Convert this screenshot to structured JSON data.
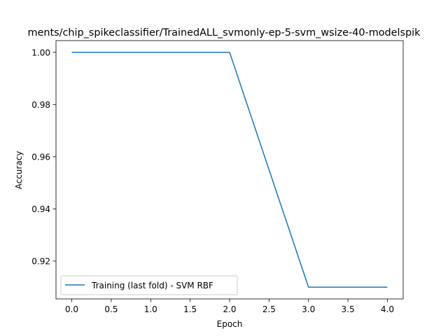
{
  "chart_data": {
    "type": "line",
    "title": "ments/chip_spikeclassifier/TrainedALL_svmonly-ep-5-svm_wsize-40-modelspik",
    "xlabel": "Epoch",
    "ylabel": "Accuracy",
    "xlim": [
      -0.2,
      4.2
    ],
    "ylim": [
      0.9055,
      1.0045
    ],
    "x_ticks": [
      "0.0",
      "0.5",
      "1.0",
      "1.5",
      "2.0",
      "2.5",
      "3.0",
      "3.5",
      "4.0"
    ],
    "y_ticks": [
      "0.92",
      "0.94",
      "0.96",
      "0.98",
      "1.00"
    ],
    "grid": false,
    "legend_position": "lower-left",
    "series": [
      {
        "name": "Training (last fold) - SVM RBF",
        "color": "#1f77b4",
        "x": [
          0,
          1,
          2,
          3,
          4
        ],
        "y": [
          1.0,
          1.0,
          1.0,
          0.91,
          0.91
        ]
      }
    ]
  }
}
